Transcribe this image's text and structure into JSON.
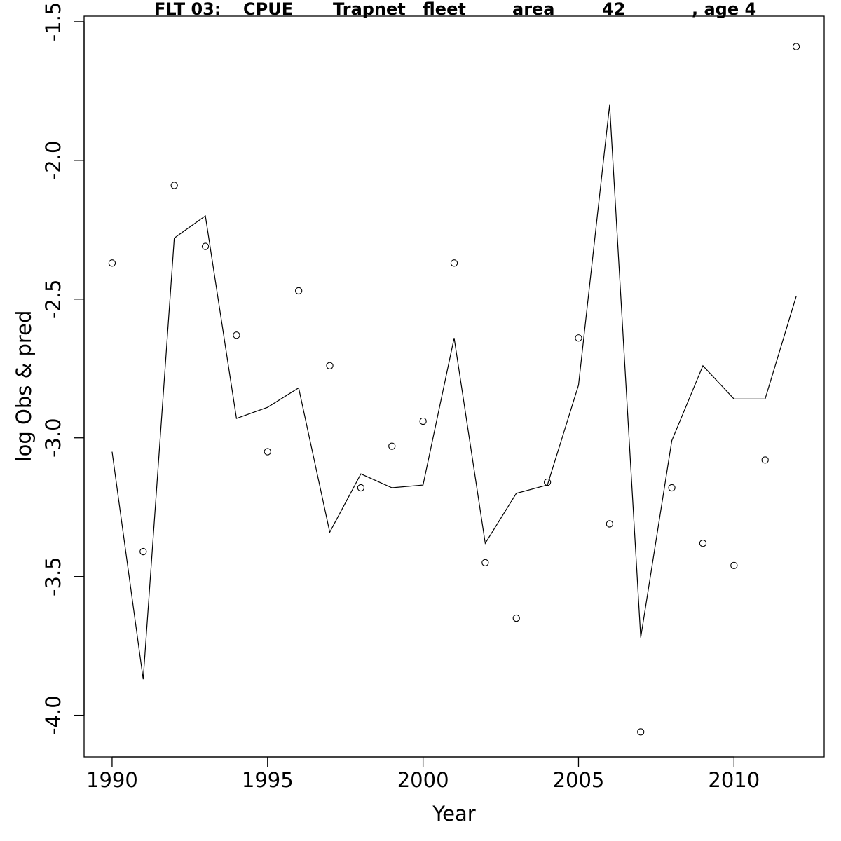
{
  "chart_data": {
    "type": "line",
    "title_parts": [
      "FLT 03:",
      "CPUE",
      "Trapnet",
      "fleet",
      "area",
      "42",
      ", age 4"
    ],
    "xlabel": "Year",
    "ylabel": "log Obs & pred",
    "xlim": [
      1989.1,
      2012.9
    ],
    "ylim": [
      -4.15,
      -1.48
    ],
    "x_ticks": [
      1990,
      1995,
      2000,
      2005,
      2010
    ],
    "y_ticks": [
      -4.0,
      -3.5,
      -3.0,
      -2.5,
      -2.0,
      -1.5
    ],
    "x_tick_labels": [
      "1990",
      "1995",
      "2000",
      "2005",
      "2010"
    ],
    "y_tick_labels": [
      "-4.0",
      "-3.5",
      "-3.0",
      "-2.5",
      "-2.0",
      "-1.5"
    ],
    "grid": false,
    "legend": "none",
    "x": [
      1990,
      1991,
      1992,
      1993,
      1994,
      1995,
      1996,
      1997,
      1998,
      1999,
      2000,
      2001,
      2002,
      2003,
      2004,
      2005,
      2006,
      2007,
      2008,
      2009,
      2010,
      2011,
      2012
    ],
    "series": [
      {
        "key": "observed",
        "style": "points",
        "values": [
          -2.37,
          -3.41,
          -2.09,
          -2.31,
          -2.63,
          -3.05,
          -2.47,
          -2.74,
          -3.18,
          -3.03,
          -2.94,
          -2.37,
          -3.45,
          -3.65,
          -3.16,
          -2.64,
          -3.31,
          -4.06,
          -3.18,
          -3.38,
          -3.46,
          -3.08,
          -1.59
        ]
      },
      {
        "key": "predicted",
        "style": "line",
        "values": [
          -3.05,
          -3.87,
          -2.28,
          -2.2,
          -2.93,
          -2.89,
          -2.82,
          -3.34,
          -3.13,
          -3.18,
          -3.17,
          -2.64,
          -3.38,
          -3.2,
          -3.17,
          -2.81,
          -1.8,
          -3.72,
          -3.01,
          -2.74,
          -2.86,
          -2.86,
          -2.49
        ]
      }
    ],
    "colors": {
      "line": "#000000",
      "points": "#000000",
      "background": "#ffffff"
    }
  }
}
